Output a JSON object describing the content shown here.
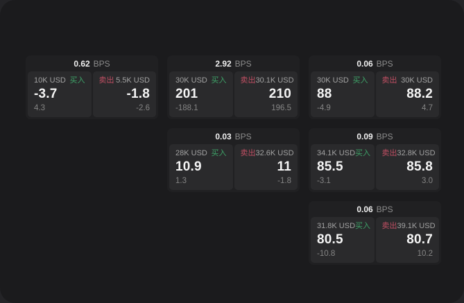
{
  "window": {
    "outer_background": "#242427",
    "background": "#1b1b1d"
  },
  "labels": {
    "bps": "BPS",
    "buy": "买入",
    "sell": "卖出"
  },
  "colors": {
    "buy_green": "#3ea268",
    "sell_red": "#c04f63",
    "value_white": "#f5f5f5",
    "label_gray": "#a3a3a3",
    "delta_gray": "#858585",
    "card_bg": "#202022",
    "panel_bg": "#2a2a2c"
  },
  "cards": [
    {
      "bps": "0.62",
      "buy": {
        "amount": "10K USD",
        "price": "-3.7",
        "delta": "4.3"
      },
      "sell": {
        "amount": "5.5K USD",
        "price": "-1.8",
        "delta": "-2.6"
      }
    },
    {
      "bps": "2.92",
      "buy": {
        "amount": "30K USD",
        "price": "201",
        "delta": "-188.1"
      },
      "sell": {
        "amount": "30.1K USD",
        "price": "210",
        "delta": "196.5"
      }
    },
    {
      "bps": "0.06",
      "buy": {
        "amount": "30K USD",
        "price": "88",
        "delta": "-4.9"
      },
      "sell": {
        "amount": "30K USD",
        "price": "88.2",
        "delta": "4.7"
      }
    },
    {
      "bps": "0.03",
      "buy": {
        "amount": "28K USD",
        "price": "10.9",
        "delta": "1.3"
      },
      "sell": {
        "amount": "32.6K USD",
        "price": "11",
        "delta": "-1.8"
      }
    },
    {
      "bps": "0.09",
      "buy": {
        "amount": "34.1K USD",
        "price": "85.5",
        "delta": "-3.1"
      },
      "sell": {
        "amount": "32.8K USD",
        "price": "85.8",
        "delta": "3.0"
      }
    },
    {
      "bps": "0.06",
      "buy": {
        "amount": "31.8K USD",
        "price": "80.5",
        "delta": "-10.8"
      },
      "sell": {
        "amount": "39.1K USD",
        "price": "80.7",
        "delta": "10.2"
      }
    }
  ]
}
